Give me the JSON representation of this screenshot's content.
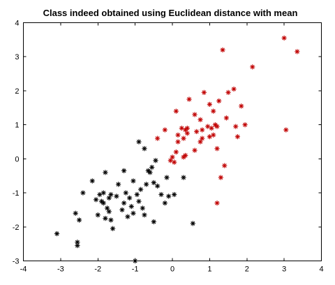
{
  "chart_data": {
    "type": "scatter",
    "title": "Class indeed obtained using Euclidean distance with mean",
    "xlabel": "",
    "ylabel": "",
    "xlim": [
      -4,
      4
    ],
    "ylim": [
      -3,
      4
    ],
    "xticks": [
      -4,
      -3,
      -2,
      -1,
      0,
      1,
      2,
      3,
      4
    ],
    "yticks": [
      -3,
      -2,
      -1,
      0,
      1,
      2,
      3,
      4
    ],
    "grid": false,
    "box": true,
    "marker": "asterisk",
    "series": [
      {
        "color": "#000000",
        "points": [
          [
            -3.1,
            -2.2
          ],
          [
            -2.6,
            -1.6
          ],
          [
            -2.55,
            -2.45
          ],
          [
            -2.55,
            -2.55
          ],
          [
            -2.5,
            -1.8
          ],
          [
            -2.4,
            -1.0
          ],
          [
            -2.15,
            -0.65
          ],
          [
            -2.05,
            -1.2
          ],
          [
            -2.0,
            -1.65
          ],
          [
            -1.95,
            -1.05
          ],
          [
            -1.9,
            -1.25
          ],
          [
            -1.85,
            -1.3
          ],
          [
            -1.85,
            -1.0
          ],
          [
            -1.8,
            -1.75
          ],
          [
            -1.8,
            -0.4
          ],
          [
            -1.75,
            -1.45
          ],
          [
            -1.7,
            -1.15
          ],
          [
            -1.7,
            -1.55
          ],
          [
            -1.65,
            -1.05
          ],
          [
            -1.65,
            -1.8
          ],
          [
            -1.6,
            -2.05
          ],
          [
            -1.5,
            -1.1
          ],
          [
            -1.45,
            -0.75
          ],
          [
            -1.35,
            -1.5
          ],
          [
            -1.3,
            -1.3
          ],
          [
            -1.3,
            -0.35
          ],
          [
            -1.25,
            -1.0
          ],
          [
            -1.2,
            -1.7
          ],
          [
            -1.15,
            -1.15
          ],
          [
            -1.1,
            -1.4
          ],
          [
            -1.05,
            -1.6
          ],
          [
            -1.05,
            -0.65
          ],
          [
            -1.0,
            -3.0
          ],
          [
            -0.95,
            -1.05
          ],
          [
            -0.9,
            -1.25
          ],
          [
            -0.85,
            -0.9
          ],
          [
            -0.8,
            -1.45
          ],
          [
            -0.75,
            -1.65
          ],
          [
            -0.7,
            -0.75
          ],
          [
            -0.65,
            -0.35
          ],
          [
            -0.6,
            -0.4
          ],
          [
            -0.55,
            -0.25
          ],
          [
            -0.5,
            -1.85
          ],
          [
            -0.5,
            -0.7
          ],
          [
            -0.45,
            -0.05
          ],
          [
            -0.4,
            -0.8
          ],
          [
            -0.3,
            -1.05
          ],
          [
            -0.2,
            -1.3
          ],
          [
            -0.15,
            -0.55
          ],
          [
            -0.1,
            -1.1
          ],
          [
            0.05,
            -1.05
          ],
          [
            0.3,
            -0.55
          ],
          [
            0.55,
            -1.9
          ],
          [
            -0.75,
            0.3
          ],
          [
            -0.9,
            0.5
          ]
        ]
      },
      {
        "color": "#c00000",
        "points": [
          [
            -0.4,
            0.6
          ],
          [
            -0.2,
            0.85
          ],
          [
            -0.05,
            -0.05
          ],
          [
            0.0,
            0.05
          ],
          [
            0.05,
            -0.1
          ],
          [
            0.1,
            1.4
          ],
          [
            0.15,
            0.5
          ],
          [
            0.15,
            0.7
          ],
          [
            0.25,
            0.9
          ],
          [
            0.3,
            0.05
          ],
          [
            0.3,
            0.6
          ],
          [
            0.35,
            0.85
          ],
          [
            0.35,
            0.1
          ],
          [
            0.4,
            0.9
          ],
          [
            0.4,
            0.75
          ],
          [
            0.45,
            1.75
          ],
          [
            0.6,
            1.3
          ],
          [
            0.6,
            0.25
          ],
          [
            0.65,
            0.8
          ],
          [
            0.75,
            0.5
          ],
          [
            0.75,
            1.15
          ],
          [
            0.8,
            0.85
          ],
          [
            0.8,
            0.6
          ],
          [
            0.85,
            1.95
          ],
          [
            0.95,
            0.95
          ],
          [
            1.0,
            1.6
          ],
          [
            1.0,
            0.65
          ],
          [
            1.05,
            0.9
          ],
          [
            1.1,
            1.4
          ],
          [
            1.1,
            0.7
          ],
          [
            1.15,
            1.0
          ],
          [
            1.2,
            0.95
          ],
          [
            1.2,
            0.3
          ],
          [
            1.25,
            1.7
          ],
          [
            1.3,
            -0.55
          ],
          [
            1.35,
            3.2
          ],
          [
            1.4,
            -0.2
          ],
          [
            1.45,
            1.2
          ],
          [
            1.5,
            1.95
          ],
          [
            1.65,
            2.05
          ],
          [
            1.7,
            0.95
          ],
          [
            1.75,
            0.65
          ],
          [
            1.85,
            1.55
          ],
          [
            1.95,
            1.0
          ],
          [
            2.15,
            2.7
          ],
          [
            3.0,
            3.55
          ],
          [
            3.05,
            0.85
          ],
          [
            3.35,
            3.15
          ],
          [
            1.2,
            -1.3
          ],
          [
            0.1,
            0.2
          ]
        ]
      }
    ]
  }
}
